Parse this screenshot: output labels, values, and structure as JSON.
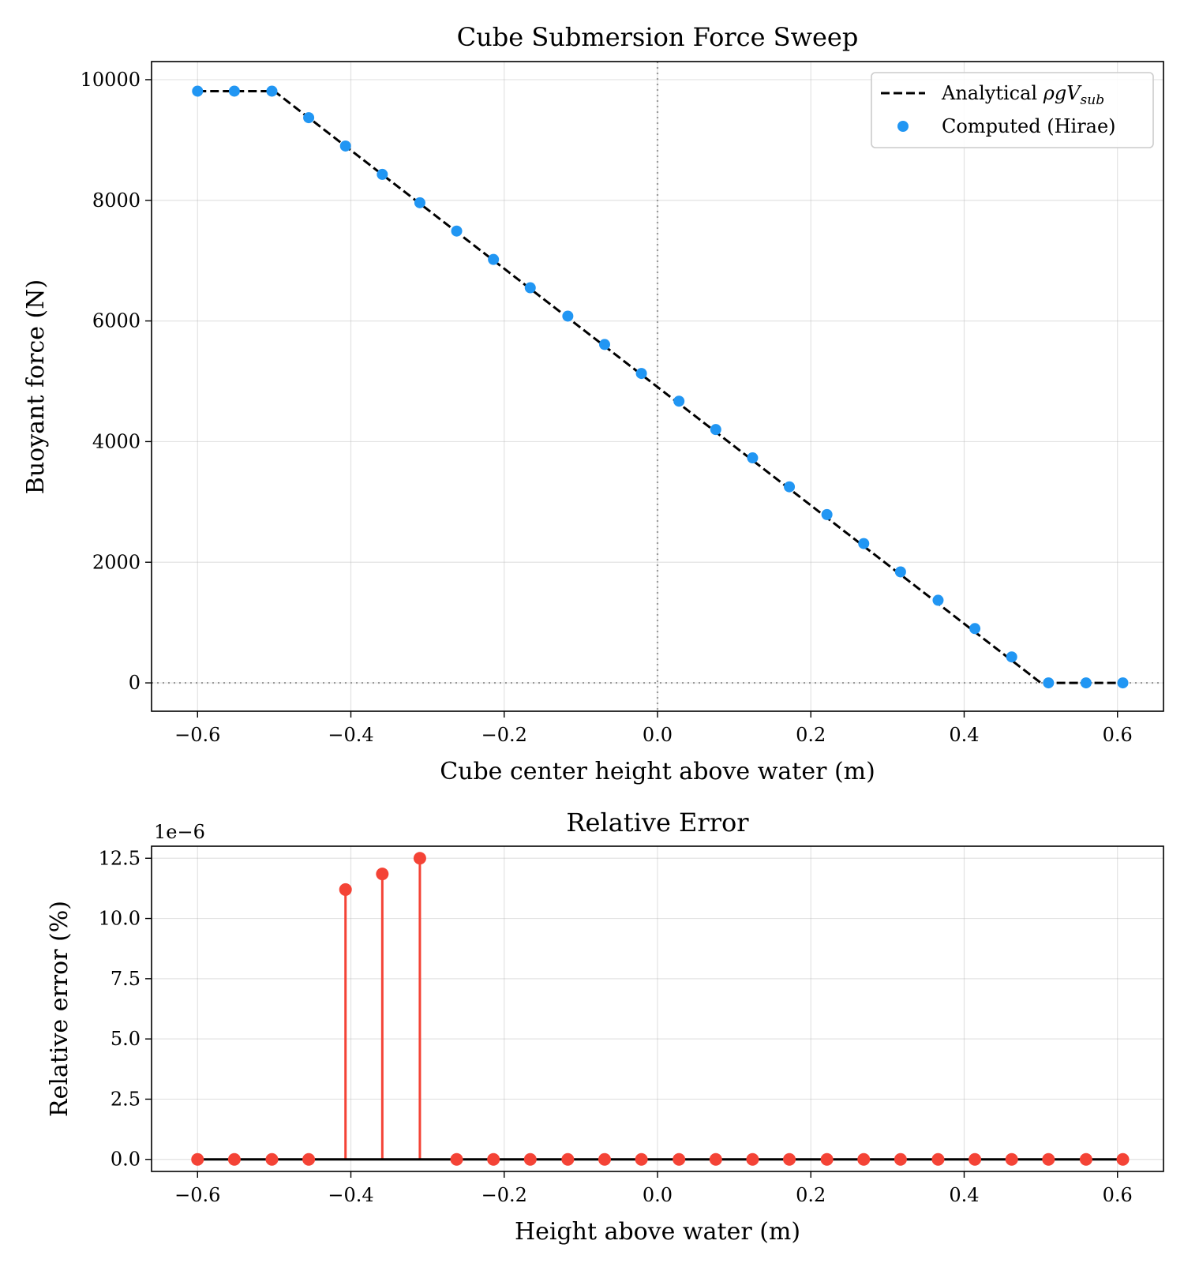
{
  "chart_data": [
    {
      "type": "line",
      "title": "Cube Submersion Force Sweep",
      "xlabel": "Cube center height above water (m)",
      "ylabel": "Buoyant force (N)",
      "xlim": [
        -0.66,
        0.66
      ],
      "ylim": [
        -470,
        10300
      ],
      "xticks": [
        -0.6,
        -0.4,
        -0.2,
        0.0,
        0.2,
        0.4,
        0.6
      ],
      "xtick_labels": [
        "−0.6",
        "−0.4",
        "−0.2",
        "0.0",
        "0.2",
        "0.4",
        "0.6"
      ],
      "yticks": [
        0,
        2000,
        4000,
        6000,
        8000,
        10000
      ],
      "ytick_labels": [
        "0",
        "2000",
        "4000",
        "6000",
        "8000",
        "10000"
      ],
      "grid": true,
      "reference_lines": {
        "x": 0,
        "y": 0
      },
      "legend": {
        "placement": "upper right",
        "entries": [
          {
            "label_prefix": "Analytical ",
            "label_math": "ρgV",
            "label_sub": "sub",
            "style": "dashed-line",
            "color": "#000000"
          },
          {
            "label": "Computed (Hirae)",
            "style": "marker",
            "color": "#2196F3"
          }
        ]
      },
      "series": [
        {
          "name": "Analytical ρgV_sub",
          "style": "dashed-line",
          "color": "#000000",
          "x": [
            -0.6,
            -0.5,
            0.5,
            0.6
          ],
          "y": [
            9810,
            9810,
            0,
            0
          ]
        },
        {
          "name": "Computed (Hirae)",
          "style": "marker",
          "color": "#2196F3",
          "x": [
            -0.6,
            -0.552,
            -0.503,
            -0.455,
            -0.407,
            -0.359,
            -0.31,
            -0.262,
            -0.214,
            -0.166,
            -0.117,
            -0.069,
            -0.021,
            0.028,
            0.076,
            0.124,
            0.172,
            0.221,
            0.269,
            0.317,
            0.366,
            0.414,
            0.462,
            0.51,
            0.559,
            0.607
          ],
          "y": [
            9810,
            9810,
            9810,
            9370,
            8900,
            8430,
            7960,
            7490,
            7020,
            6550,
            6080,
            5610,
            5130,
            4670,
            4200,
            3730,
            3250,
            2790,
            2310,
            1840,
            1370,
            900,
            430,
            0,
            0,
            0
          ]
        }
      ]
    },
    {
      "type": "stem",
      "title": "Relative Error",
      "xlabel": "Height above water (m)",
      "ylabel": "Relative error (%)",
      "offset_text": "1e−6",
      "xlim": [
        -0.66,
        0.66
      ],
      "ylim": [
        -0.5,
        13.0
      ],
      "xticks": [
        -0.6,
        -0.4,
        -0.2,
        0.0,
        0.2,
        0.4,
        0.6
      ],
      "xtick_labels": [
        "−0.6",
        "−0.4",
        "−0.2",
        "0.0",
        "0.2",
        "0.4",
        "0.6"
      ],
      "yticks": [
        0,
        2.5,
        5,
        7.5,
        10,
        12.5
      ],
      "ytick_labels": [
        "0.0",
        "2.5",
        "5.0",
        "7.5",
        "10.0",
        "12.5"
      ],
      "grid": true,
      "series": [
        {
          "style": "stem",
          "color": "#F44336",
          "baseline_color": "#000000",
          "x": [
            -0.6,
            -0.552,
            -0.503,
            -0.455,
            -0.407,
            -0.359,
            -0.31,
            -0.262,
            -0.214,
            -0.166,
            -0.117,
            -0.069,
            -0.021,
            0.028,
            0.076,
            0.124,
            0.172,
            0.221,
            0.269,
            0.317,
            0.366,
            0.414,
            0.462,
            0.51,
            0.559,
            0.607
          ],
          "y": [
            0,
            0,
            0,
            0,
            11.2,
            11.85,
            12.5,
            0,
            0,
            0,
            0,
            0,
            0,
            0,
            0,
            0,
            0,
            0,
            0,
            0,
            0,
            0,
            0,
            0,
            0,
            0
          ]
        }
      ]
    }
  ]
}
